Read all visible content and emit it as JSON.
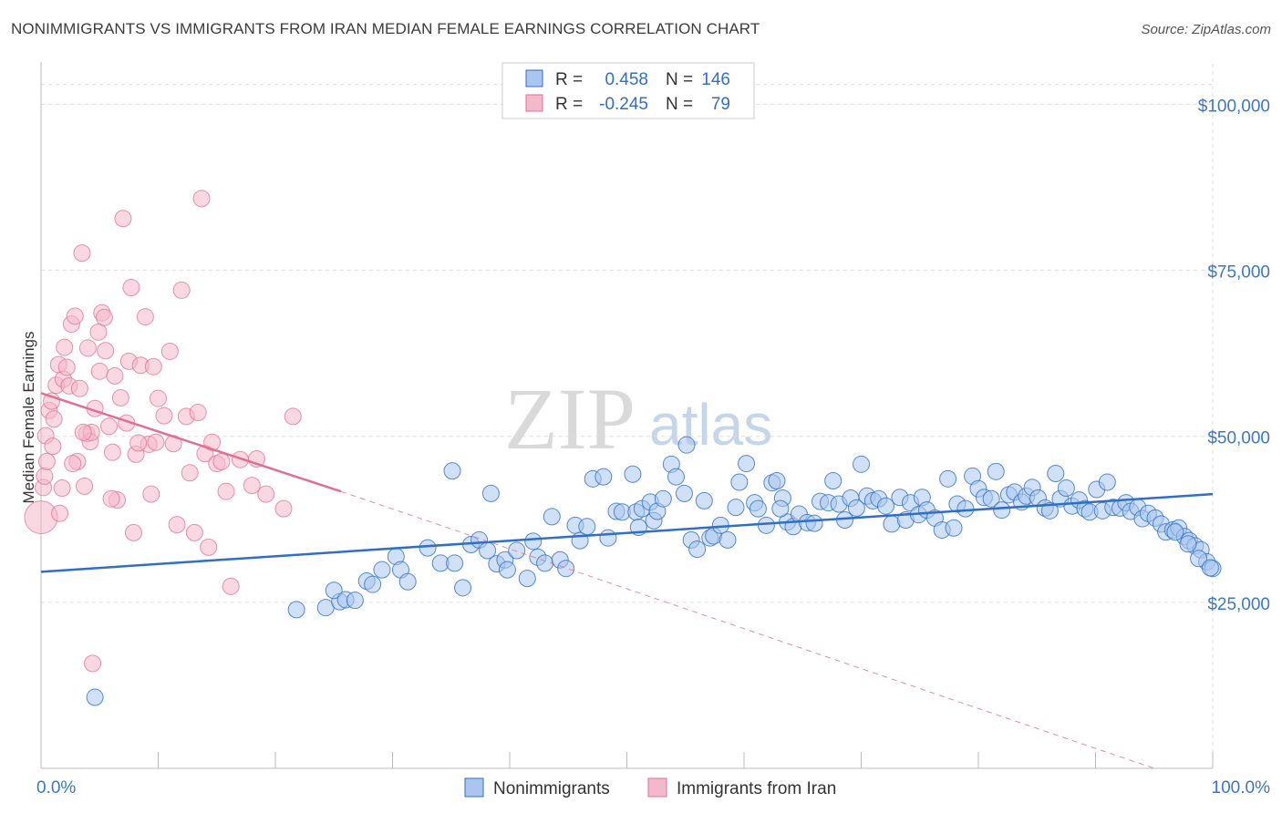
{
  "title": "NONIMMIGRANTS VS IMMIGRANTS FROM IRAN MEDIAN FEMALE EARNINGS CORRELATION CHART",
  "source": "Source: ZipAtlas.com",
  "watermark": {
    "zip": "ZIP",
    "atlas": "atlas"
  },
  "colors": {
    "blue": "#2f6fc6",
    "blue_fill": "#aac6ee",
    "pink": "#e06f96",
    "pink_fill": "#f4b8cb",
    "grid": "#dddddd"
  },
  "stats": {
    "nonimmigrants": {
      "r_label": "R =",
      "r": "0.458",
      "n_label": "N =",
      "n": "146"
    },
    "iran": {
      "r_label": "R =",
      "r": "-0.245",
      "n_label": "N =",
      "n": "79"
    }
  },
  "legend": {
    "nonimmigrants": "Nonimmigrants",
    "iran": "Immigrants from Iran"
  },
  "chart_data": {
    "type": "scatter",
    "xlabel": "",
    "ylabel": "Median Female Earnings",
    "xlim": [
      0,
      100
    ],
    "ylim": [
      0,
      105000
    ],
    "x_ticks": [
      {
        "value": 0,
        "label": "0.0%"
      },
      {
        "value": 100,
        "label": "100.0%"
      }
    ],
    "y_ticks": [
      {
        "value": 25000,
        "label": "$25,000"
      },
      {
        "value": 50000,
        "label": "$50,000"
      },
      {
        "value": 75000,
        "label": "$75,000"
      },
      {
        "value": 100000,
        "label": "$100,000"
      }
    ],
    "grid": true,
    "legend_position": "bottom",
    "series": [
      {
        "name": "Nonimmigrants",
        "trend": {
          "x0": 0,
          "y0": 29600,
          "x1": 100,
          "y1": 41300
        },
        "points": [
          [
            4.6,
            10700
          ],
          [
            21.8,
            23900
          ],
          [
            24.3,
            24200
          ],
          [
            25.5,
            25100
          ],
          [
            25.0,
            26800
          ],
          [
            26.0,
            25400
          ],
          [
            26.8,
            25300
          ],
          [
            27.8,
            28200
          ],
          [
            28.3,
            27700
          ],
          [
            29.1,
            29900
          ],
          [
            30.3,
            31900
          ],
          [
            30.7,
            29900
          ],
          [
            31.3,
            28100
          ],
          [
            33.0,
            33200
          ],
          [
            34.1,
            30900
          ],
          [
            35.3,
            30900
          ],
          [
            35.1,
            44800
          ],
          [
            36.0,
            27200
          ],
          [
            36.7,
            33700
          ],
          [
            37.4,
            34400
          ],
          [
            38.1,
            32800
          ],
          [
            38.4,
            41400
          ],
          [
            38.9,
            30800
          ],
          [
            39.6,
            31400
          ],
          [
            39.8,
            29900
          ],
          [
            40.6,
            32800
          ],
          [
            41.5,
            28600
          ],
          [
            42.0,
            34200
          ],
          [
            42.4,
            31800
          ],
          [
            43.0,
            30900
          ],
          [
            43.6,
            37900
          ],
          [
            44.3,
            31400
          ],
          [
            44.8,
            30100
          ],
          [
            45.6,
            36600
          ],
          [
            46.0,
            34300
          ],
          [
            46.6,
            36400
          ],
          [
            47.1,
            43600
          ],
          [
            48.0,
            43900
          ],
          [
            48.4,
            34700
          ],
          [
            49.1,
            38700
          ],
          [
            49.6,
            38600
          ],
          [
            50.5,
            44300
          ],
          [
            50.8,
            38600
          ],
          [
            51.3,
            39100
          ],
          [
            52.0,
            40100
          ],
          [
            52.3,
            37300
          ],
          [
            52.6,
            38700
          ],
          [
            53.1,
            40600
          ],
          [
            53.8,
            45800
          ],
          [
            54.2,
            43900
          ],
          [
            54.9,
            41400
          ],
          [
            55.1,
            48700
          ],
          [
            55.5,
            34400
          ],
          [
            56.0,
            33000
          ],
          [
            56.6,
            40300
          ],
          [
            57.1,
            34700
          ],
          [
            57.4,
            35000
          ],
          [
            58.0,
            36600
          ],
          [
            58.6,
            34400
          ],
          [
            59.3,
            39300
          ],
          [
            59.6,
            43100
          ],
          [
            60.2,
            45900
          ],
          [
            60.9,
            40000
          ],
          [
            61.2,
            39100
          ],
          [
            61.9,
            36600
          ],
          [
            62.4,
            43000
          ],
          [
            62.8,
            43300
          ],
          [
            63.3,
            40700
          ],
          [
            63.7,
            37100
          ],
          [
            64.2,
            36400
          ],
          [
            64.7,
            38300
          ],
          [
            65.4,
            37000
          ],
          [
            66.0,
            36900
          ],
          [
            66.5,
            40200
          ],
          [
            67.2,
            40000
          ],
          [
            67.6,
            43300
          ],
          [
            68.1,
            39800
          ],
          [
            68.6,
            37400
          ],
          [
            69.1,
            40700
          ],
          [
            69.6,
            39200
          ],
          [
            70.0,
            45800
          ],
          [
            70.5,
            41000
          ],
          [
            71.0,
            40300
          ],
          [
            71.5,
            40600
          ],
          [
            72.1,
            39500
          ],
          [
            72.6,
            36800
          ],
          [
            73.3,
            40800
          ],
          [
            73.8,
            37400
          ],
          [
            74.2,
            40000
          ],
          [
            74.9,
            38200
          ],
          [
            75.2,
            40800
          ],
          [
            75.6,
            38900
          ],
          [
            76.3,
            37700
          ],
          [
            76.9,
            35900
          ],
          [
            77.4,
            43600
          ],
          [
            77.9,
            36200
          ],
          [
            78.2,
            39800
          ],
          [
            78.9,
            39100
          ],
          [
            79.5,
            44000
          ],
          [
            80.0,
            42100
          ],
          [
            80.5,
            40800
          ],
          [
            81.1,
            40600
          ],
          [
            81.5,
            44700
          ],
          [
            82.0,
            38900
          ],
          [
            82.6,
            41200
          ],
          [
            83.1,
            41600
          ],
          [
            83.7,
            40100
          ],
          [
            84.1,
            41000
          ],
          [
            84.6,
            42300
          ],
          [
            85.1,
            40700
          ],
          [
            85.7,
            39200
          ],
          [
            86.1,
            38800
          ],
          [
            86.6,
            44400
          ],
          [
            87.0,
            40600
          ],
          [
            87.5,
            42200
          ],
          [
            88.0,
            39500
          ],
          [
            88.6,
            40400
          ],
          [
            89.1,
            39100
          ],
          [
            89.5,
            38600
          ],
          [
            90.1,
            42000
          ],
          [
            90.6,
            38800
          ],
          [
            91.0,
            43100
          ],
          [
            91.5,
            39300
          ],
          [
            92.1,
            39200
          ],
          [
            92.6,
            40000
          ],
          [
            93.0,
            38700
          ],
          [
            93.6,
            39300
          ],
          [
            94.0,
            37600
          ],
          [
            94.5,
            38400
          ],
          [
            95.1,
            37700
          ],
          [
            95.6,
            36800
          ],
          [
            96.0,
            35600
          ],
          [
            96.6,
            35900
          ],
          [
            97.1,
            36200
          ],
          [
            97.6,
            34900
          ],
          [
            98.0,
            34300
          ],
          [
            98.5,
            33500
          ],
          [
            99.0,
            32900
          ],
          [
            99.5,
            31100
          ],
          [
            100.0,
            30100
          ],
          [
            96.8,
            35600
          ],
          [
            97.9,
            33800
          ],
          [
            98.8,
            31600
          ],
          [
            99.8,
            30200
          ],
          [
            51.0,
            36300
          ],
          [
            63.1,
            39100
          ]
        ]
      },
      {
        "name": "Immigrants from Iran",
        "trend": {
          "x0": 0,
          "y0": 56500,
          "x1": 25.6,
          "y1": 41700,
          "dash_x1": 95,
          "dash_y1": 0
        },
        "points": [
          [
            0.0,
            37800
          ],
          [
            0.2,
            42300
          ],
          [
            0.3,
            44000
          ],
          [
            0.5,
            46200
          ],
          [
            0.4,
            50100
          ],
          [
            0.7,
            53900
          ],
          [
            0.9,
            55300
          ],
          [
            1.0,
            48500
          ],
          [
            1.1,
            52600
          ],
          [
            1.3,
            57700
          ],
          [
            1.5,
            60800
          ],
          [
            1.6,
            38400
          ],
          [
            1.9,
            58600
          ],
          [
            2.0,
            63400
          ],
          [
            2.2,
            60400
          ],
          [
            2.4,
            57600
          ],
          [
            2.6,
            66900
          ],
          [
            2.9,
            68100
          ],
          [
            3.1,
            46200
          ],
          [
            3.3,
            57200
          ],
          [
            3.5,
            77600
          ],
          [
            3.7,
            42500
          ],
          [
            3.9,
            50400
          ],
          [
            4.0,
            63300
          ],
          [
            4.2,
            49200
          ],
          [
            4.3,
            50600
          ],
          [
            4.6,
            54200
          ],
          [
            4.9,
            65700
          ],
          [
            5.0,
            59800
          ],
          [
            5.2,
            68600
          ],
          [
            5.4,
            67900
          ],
          [
            5.5,
            62900
          ],
          [
            5.8,
            51500
          ],
          [
            6.1,
            47600
          ],
          [
            6.3,
            59100
          ],
          [
            6.5,
            40400
          ],
          [
            6.8,
            55800
          ],
          [
            7.0,
            82800
          ],
          [
            7.3,
            52000
          ],
          [
            7.5,
            61300
          ],
          [
            7.7,
            72400
          ],
          [
            7.9,
            35500
          ],
          [
            8.1,
            47300
          ],
          [
            8.5,
            60700
          ],
          [
            8.9,
            68000
          ],
          [
            9.2,
            48800
          ],
          [
            9.4,
            41300
          ],
          [
            9.6,
            60500
          ],
          [
            9.8,
            49100
          ],
          [
            10.0,
            55700
          ],
          [
            10.5,
            53100
          ],
          [
            11.0,
            62800
          ],
          [
            11.3,
            48900
          ],
          [
            11.6,
            36700
          ],
          [
            12.0,
            72000
          ],
          [
            12.4,
            53000
          ],
          [
            12.7,
            44500
          ],
          [
            13.1,
            35500
          ],
          [
            13.4,
            53600
          ],
          [
            13.7,
            85800
          ],
          [
            14.0,
            47400
          ],
          [
            14.3,
            33300
          ],
          [
            14.6,
            49100
          ],
          [
            15.0,
            45900
          ],
          [
            15.4,
            46200
          ],
          [
            15.8,
            41700
          ],
          [
            16.2,
            27400
          ],
          [
            17.0,
            46500
          ],
          [
            18.0,
            42600
          ],
          [
            18.4,
            46600
          ],
          [
            19.2,
            41300
          ],
          [
            20.7,
            39100
          ],
          [
            21.5,
            53000
          ],
          [
            4.4,
            15800
          ],
          [
            1.8,
            42200
          ],
          [
            3.6,
            50600
          ],
          [
            6.0,
            40600
          ],
          [
            8.3,
            49000
          ],
          [
            2.7,
            45900
          ]
        ]
      }
    ]
  }
}
